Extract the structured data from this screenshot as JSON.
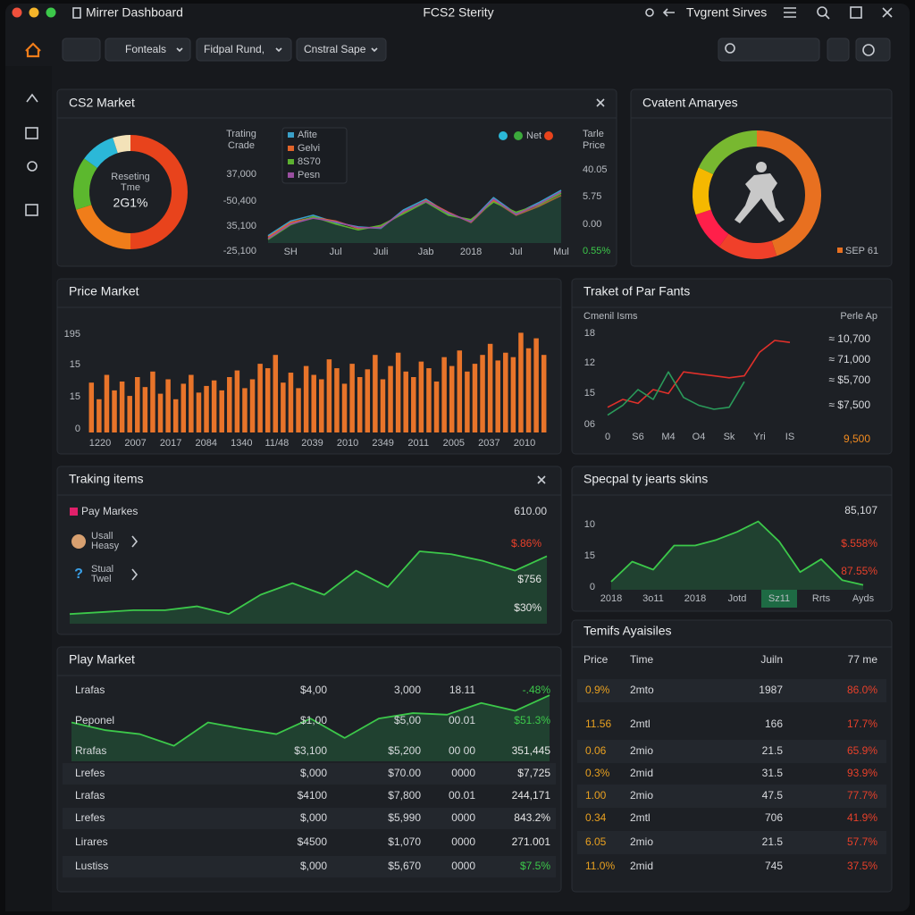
{
  "titlebar": {
    "title": "Mirrer Dashboard",
    "center": "FCS2 Sterity",
    "right": "Tvgrent Sirves"
  },
  "toolbar": {
    "filters": [
      "Fonteals",
      "Fidpal Rund,",
      "Cnstral Sape"
    ]
  },
  "cs2_market": {
    "title": "CS2 Market",
    "donut": {
      "type": "pie",
      "label": [
        "Reseting",
        "Tme"
      ],
      "value_text": "2G1%",
      "values": [
        50,
        20,
        15,
        10,
        5
      ],
      "colors": [
        "#e8431c",
        "#f07d1a",
        "#5cb82e",
        "#2bb8d8",
        "#f3e2b8"
      ]
    },
    "trend": {
      "type": "line",
      "label": [
        "Trating",
        "Crade"
      ],
      "y_labels": [
        "37,000",
        "-50,400",
        "35,100",
        "-25,100"
      ],
      "categories": [
        null,
        "SH",
        null,
        "Jul",
        null,
        "Juli",
        null,
        "Jab",
        null,
        "2018",
        null,
        "Jul",
        null,
        "Mul"
      ],
      "ylim": [
        0,
        100
      ],
      "series": [
        {
          "name": "Afite",
          "color": "#3aa0c8",
          "values": [
            10,
            30,
            38,
            28,
            22,
            20,
            45,
            60,
            40,
            30,
            62,
            40,
            55,
            72
          ]
        },
        {
          "name": "Gelvi",
          "color": "#e0642a",
          "values": [
            8,
            28,
            35,
            30,
            20,
            22,
            42,
            58,
            42,
            28,
            58,
            38,
            50,
            65
          ]
        },
        {
          "name": "8S70",
          "color": "#5cb030",
          "values": [
            5,
            25,
            36,
            26,
            18,
            24,
            40,
            56,
            38,
            32,
            56,
            42,
            52,
            68
          ]
        },
        {
          "name": "Pesn",
          "color": "#9a4fa0",
          "values": [
            6,
            26,
            34,
            29,
            21,
            21,
            43,
            57,
            41,
            29,
            60,
            39,
            53,
            70
          ]
        }
      ],
      "marker_legend": "Net",
      "marker_colors": [
        "#2bb8d8",
        "#3caa3c",
        "#e8431c"
      ],
      "right_title": [
        "Tarle",
        "Price"
      ],
      "right_labels": [
        "40.05",
        "5.75",
        "0.00",
        "0.55%"
      ]
    }
  },
  "content_analysis": {
    "title": "Cvatent Amaryes",
    "donut": {
      "type": "pie",
      "values": [
        45,
        15,
        10,
        12,
        18
      ],
      "colors": [
        "#e87020",
        "#f0402a",
        "#ff1f4a",
        "#f5b800",
        "#78b830"
      ]
    },
    "legend": "SEP 61",
    "legend_color": "#e87020"
  },
  "price_market": {
    "title": "Price Market",
    "type": "bar",
    "y_labels": [
      "195",
      "15",
      "15",
      "0"
    ],
    "x_labels": [
      "1220",
      "2007",
      "2017",
      "2084",
      "1340",
      "11/48",
      "2039",
      "2010",
      "2349",
      "2011",
      "2005",
      "2037",
      "2010"
    ],
    "ylim": [
      0,
      100
    ],
    "color": "#e8742a",
    "values": [
      45,
      30,
      52,
      38,
      46,
      33,
      50,
      41,
      55,
      35,
      48,
      30,
      44,
      52,
      36,
      42,
      47,
      38,
      50,
      56,
      40,
      48,
      62,
      58,
      70,
      45,
      54,
      40,
      60,
      52,
      48,
      66,
      58,
      44,
      62,
      50,
      57,
      70,
      48,
      60,
      72,
      55,
      50,
      64,
      58,
      46,
      68,
      60,
      74,
      55,
      62,
      70,
      80,
      65,
      72,
      68,
      90,
      76,
      85,
      70
    ]
  },
  "par_fants": {
    "title": "Traket of Par Fants",
    "subtitle": "Cmenil Isms",
    "right_title": "Perle Ap",
    "type": "line",
    "y_labels": [
      "18",
      "12",
      "15",
      "06"
    ],
    "categories": [
      "0",
      null,
      "S6",
      null,
      "M4",
      null,
      "O4",
      null,
      "Sk",
      null,
      "Yri",
      null,
      "IS"
    ],
    "ylim": [
      0,
      100
    ],
    "series": [
      {
        "color": "#e0302a",
        "values": [
          22,
          30,
          26,
          40,
          36,
          58,
          56,
          54,
          52,
          54,
          78,
          90,
          88
        ]
      },
      {
        "color": "#2a9a5a",
        "values": [
          14,
          24,
          40,
          30,
          58,
          32,
          24,
          20,
          22,
          48,
          null,
          null,
          null
        ]
      }
    ],
    "right_labels": [
      "≈ 10,700",
      "≈ 71,000",
      "≈ $5,700",
      "≈ $7,500",
      "9,500"
    ]
  },
  "tracking_items": {
    "title": "Traking items",
    "legend": "Pay Markes",
    "legend_color": "#e0206a",
    "total": "610.00",
    "items": [
      [
        "Usall",
        "Heasy"
      ],
      [
        "Stual",
        "Twel"
      ]
    ],
    "labels": [
      "$.86%",
      "$756",
      "$30%"
    ],
    "label_colors": [
      "#e8402a",
      "#e6e6e6",
      "#e6e6e6"
    ],
    "type": "area",
    "ylim": [
      0,
      100
    ],
    "color": "#3cc84a",
    "values": [
      10,
      12,
      14,
      14,
      18,
      10,
      30,
      42,
      30,
      55,
      38,
      75,
      72,
      65,
      55,
      70
    ]
  },
  "special_skins": {
    "title": "Specpal ty jearts skins",
    "total": "85,107",
    "labels": [
      "$.558%",
      "87.55%"
    ],
    "label_color": "#e8402a",
    "y_labels": [
      "10",
      "15",
      "0"
    ],
    "type": "area",
    "ylim": [
      0,
      100
    ],
    "color": "#3cc84a",
    "highlight_index": 8,
    "categories": [
      "2018",
      null,
      "3o11",
      null,
      "2018",
      null,
      "Jotd",
      null,
      "Sz11",
      null,
      "Rrts",
      null,
      "Ayds"
    ],
    "values": [
      10,
      35,
      25,
      55,
      55,
      62,
      72,
      85,
      60,
      22,
      38,
      12,
      6
    ]
  },
  "play_market": {
    "title": "Play Market",
    "rows": [
      [
        "Lrafas",
        "$4,00",
        "3,000",
        "18.11",
        "-.48%"
      ],
      [
        "Peponel",
        "$1,00",
        "$5,00",
        "00.01",
        "$51.3%"
      ],
      [
        "Rrafas",
        "$3,100",
        "$5,200",
        "00 00",
        "351,445"
      ],
      [
        "Lrefes",
        "$,000",
        "$70.00",
        "0000",
        "$7,725"
      ],
      [
        "Lrafas",
        "$4100",
        "$7,800",
        "00.01",
        "244,171"
      ],
      [
        "Lrefes",
        "$,000",
        "$5,990",
        "0000",
        "843.2%"
      ],
      [
        "Lirares",
        "$4500",
        "$1,070",
        "0000",
        "271.001"
      ],
      [
        "Lustiss",
        "$,000",
        "$5,670",
        "0000",
        "$7.5%"
      ]
    ],
    "last_cell_colors": [
      "#3cc84a",
      "#3cc84a",
      "#e6e6e6",
      "#e6e6e6",
      "#e6e6e6",
      "#e6e6e6",
      "#e6e6e6",
      "#3cc84a"
    ],
    "type": "area",
    "ylim": [
      0,
      100
    ],
    "color": "#3cc84a",
    "values": [
      50,
      40,
      35,
      20,
      50,
      42,
      35,
      55,
      30,
      55,
      62,
      60,
      75,
      65,
      85
    ]
  },
  "term_analysis": {
    "title": "Temifs Ayaisiles",
    "header": [
      "Price",
      "Time",
      "Juiln",
      "77 me"
    ],
    "rows": [
      [
        "0.9%",
        "2mto",
        "1987",
        "86.0%"
      ],
      [
        "11.56",
        "2mtl",
        "166",
        "17.7%"
      ],
      [
        "0.06",
        "2mio",
        "21.5",
        "65.9%"
      ],
      [
        "0.3%",
        "2mid",
        "31.5",
        "93.9%"
      ],
      [
        "1.00",
        "2mio",
        "47.5",
        "77.7%"
      ],
      [
        "0.34",
        "2mtl",
        "706",
        "41.9%"
      ],
      [
        "6.05",
        "2mio",
        "21.5",
        "57.7%"
      ],
      [
        "11.0%",
        "2mid",
        "745",
        "37.5%"
      ]
    ]
  }
}
